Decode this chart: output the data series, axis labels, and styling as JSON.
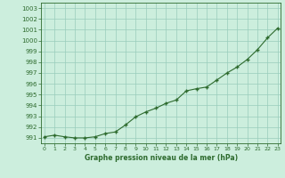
{
  "x": [
    0,
    1,
    2,
    3,
    4,
    5,
    6,
    7,
    8,
    9,
    10,
    11,
    12,
    13,
    14,
    15,
    16,
    17,
    18,
    19,
    20,
    21,
    22,
    23
  ],
  "y": [
    991.1,
    991.25,
    991.1,
    991.0,
    991.0,
    991.1,
    991.4,
    991.55,
    992.2,
    992.95,
    993.4,
    993.75,
    994.2,
    994.5,
    995.35,
    995.55,
    995.7,
    996.35,
    997.0,
    997.55,
    998.25,
    999.15,
    1000.25,
    1001.15
  ],
  "line_color": "#2d6a2d",
  "marker_color": "#2d6a2d",
  "bg_color": "#cceedd",
  "grid_color": "#99ccbb",
  "axis_color": "#2d6a2d",
  "tick_label_color": "#2d6a2d",
  "title": "Graphe pression niveau de la mer (hPa)",
  "title_color": "#2d6a2d",
  "ylim_min": 990.5,
  "ylim_max": 1003.5,
  "yticks": [
    991,
    992,
    993,
    994,
    995,
    996,
    997,
    998,
    999,
    1000,
    1001,
    1002,
    1003
  ],
  "xticks": [
    0,
    1,
    2,
    3,
    4,
    5,
    6,
    7,
    8,
    9,
    10,
    11,
    12,
    13,
    14,
    15,
    16,
    17,
    18,
    19,
    20,
    21,
    22,
    23
  ],
  "xlim_min": -0.3,
  "xlim_max": 23.3
}
